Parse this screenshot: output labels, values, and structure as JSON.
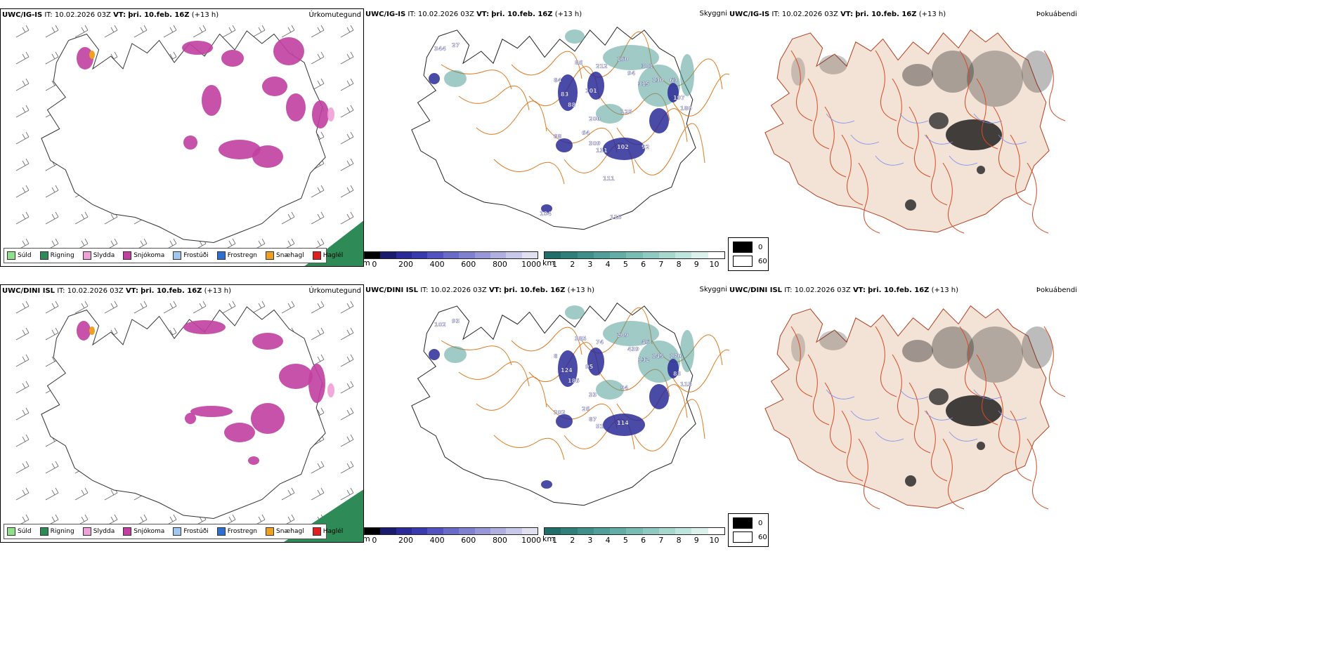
{
  "rows": [
    {
      "model": "UWC/IG-IS",
      "precip": {
        "it_label": "IT:",
        "it_value": "10.02.2026 03Z",
        "vt_label": "VT:",
        "vt_value": "þri. 10.feb. 16Z",
        "lead": "(+13 h)",
        "right_label": "Úrkomutegund"
      },
      "vis": {
        "it_label": "IT:",
        "it_value": "10.02.2026 03Z",
        "vt_label": "VT:",
        "vt_value": "þri. 10.feb. 16Z",
        "lead": "(+13 h)",
        "right_label": "Skyggni",
        "numbers": [
          "344",
          "27",
          "84",
          "83",
          "88",
          "86",
          "101",
          "200",
          "212",
          "160",
          "94",
          "301",
          "315",
          "130",
          "63",
          "197",
          "180",
          "125",
          "88",
          "64",
          "309",
          "131",
          "102",
          "92",
          "111",
          "115",
          "104"
        ]
      },
      "fog": {
        "it_label": "IT:",
        "it_value": "10.02.2026 03Z",
        "vt_label": "VT:",
        "vt_value": "þri. 10.feb. 16Z",
        "lead": "(+13 h)",
        "right_label": "Þokuábendi"
      }
    },
    {
      "model": "UWC/DINI ISL",
      "precip": {
        "it_label": "IT:",
        "it_value": "10.02.2026 03Z",
        "vt_label": "VT:",
        "vt_value": "þri. 10.feb. 16Z",
        "lead": "(+13 h)",
        "right_label": "Úrkomutegund"
      },
      "vis": {
        "it_label": "IT:",
        "it_value": "10.02.2026 03Z",
        "vt_label": "VT:",
        "vt_value": "þri. 10.feb. 16Z",
        "lead": "(+13 h)",
        "right_label": "Skyggni",
        "numbers": [
          "102",
          "93",
          "8",
          "124",
          "186",
          "385",
          "95",
          "33",
          "74",
          "209",
          "439",
          "46",
          "132",
          "145",
          "170",
          "83",
          "115",
          "94",
          "202",
          "26",
          "87",
          "51",
          "114"
        ]
      },
      "fog": {
        "it_label": "IT:",
        "it_value": "10.02.2026 03Z",
        "vt_label": "VT:",
        "vt_value": "þri. 10.feb. 16Z",
        "lead": "(+13 h)",
        "right_label": "Þokuábendi"
      }
    }
  ],
  "precip_legend": [
    {
      "label": "Súld",
      "color": "#8ee08a"
    },
    {
      "label": "Rigning",
      "color": "#2e8b57"
    },
    {
      "label": "Slydda",
      "color": "#f0a0d8"
    },
    {
      "label": "Snjókoma",
      "color": "#c040a0"
    },
    {
      "label": "Frostúði",
      "color": "#9fc7f0"
    },
    {
      "label": "Frostregn",
      "color": "#2c6fd0"
    },
    {
      "label": "Snæhagl",
      "color": "#f0a020"
    },
    {
      "label": "Haglél",
      "color": "#e02020"
    }
  ],
  "ceiling_scale": {
    "unit": "m",
    "ticks": [
      "0",
      "200",
      "400",
      "600",
      "800",
      "1000"
    ],
    "colors": [
      "#000000",
      "#1a1a70",
      "#2a2a98",
      "#3a3ab0",
      "#5252c0",
      "#6a6ac8",
      "#8080d0",
      "#9898d8",
      "#b0b0e0",
      "#c8c8e8",
      "#e0e0f0"
    ]
  },
  "visibility_scale": {
    "unit": "km",
    "ticks": [
      "1",
      "2",
      "3",
      "4",
      "5",
      "6",
      "7",
      "8",
      "9",
      "10"
    ],
    "colors": [
      "#1f6e6a",
      "#2f7f7a",
      "#3f8f8a",
      "#509f98",
      "#62aea6",
      "#78bcb4",
      "#8ecac2",
      "#a6d8d0",
      "#c0e4de",
      "#dcf0ec",
      "#ffffff"
    ]
  },
  "fog_scale": {
    "ticks": [
      "0",
      "60"
    ]
  }
}
